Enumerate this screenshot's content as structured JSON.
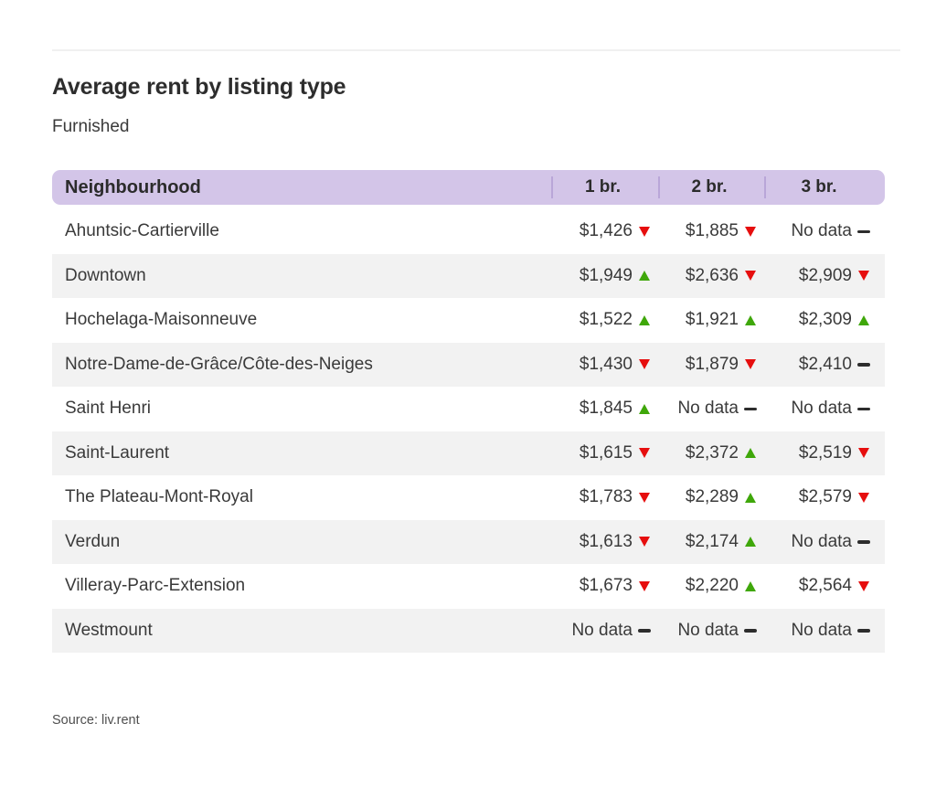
{
  "colors": {
    "header_bg": "#d3c5e8",
    "header_divider": "#b9a6d8",
    "row_alt": "#f2f2f2",
    "up": "#3fa70a",
    "down": "#e60e0e",
    "flat": "#2d2d2d",
    "text": "#3a3a3a"
  },
  "chart_data": {
    "type": "table",
    "title": "Average rent by listing type",
    "subtitle": "Furnished",
    "columns": [
      "Neighbourhood",
      "1 br.",
      "2 br.",
      "3 br."
    ],
    "no_data_label": "No data",
    "source": "Source: liv.rent",
    "rows": [
      {
        "neighbourhood": "Ahuntsic-Cartierville",
        "cells": [
          {
            "value": "$1,426",
            "trend": "down"
          },
          {
            "value": "$1,885",
            "trend": "down"
          },
          {
            "value": "No data",
            "trend": "flat"
          }
        ]
      },
      {
        "neighbourhood": "Downtown",
        "cells": [
          {
            "value": "$1,949",
            "trend": "up"
          },
          {
            "value": "$2,636",
            "trend": "down"
          },
          {
            "value": "$2,909",
            "trend": "down"
          }
        ]
      },
      {
        "neighbourhood": "Hochelaga-Maisonneuve",
        "cells": [
          {
            "value": "$1,522",
            "trend": "up"
          },
          {
            "value": "$1,921",
            "trend": "up"
          },
          {
            "value": "$2,309",
            "trend": "up"
          }
        ]
      },
      {
        "neighbourhood": "Notre-Dame-de-Grâce/Côte-des-Neiges",
        "cells": [
          {
            "value": "$1,430",
            "trend": "down"
          },
          {
            "value": "$1,879",
            "trend": "down"
          },
          {
            "value": "$2,410",
            "trend": "flat"
          }
        ]
      },
      {
        "neighbourhood": "Saint Henri",
        "cells": [
          {
            "value": "$1,845",
            "trend": "up"
          },
          {
            "value": "No data",
            "trend": "flat"
          },
          {
            "value": "No data",
            "trend": "flat"
          }
        ]
      },
      {
        "neighbourhood": "Saint-Laurent",
        "cells": [
          {
            "value": "$1,615",
            "trend": "down"
          },
          {
            "value": "$2,372",
            "trend": "up"
          },
          {
            "value": "$2,519",
            "trend": "down"
          }
        ]
      },
      {
        "neighbourhood": "The Plateau-Mont-Royal",
        "cells": [
          {
            "value": "$1,783",
            "trend": "down"
          },
          {
            "value": "$2,289",
            "trend": "up"
          },
          {
            "value": "$2,579",
            "trend": "down"
          }
        ]
      },
      {
        "neighbourhood": "Verdun",
        "cells": [
          {
            "value": "$1,613",
            "trend": "down"
          },
          {
            "value": "$2,174",
            "trend": "up"
          },
          {
            "value": "No data",
            "trend": "flat"
          }
        ]
      },
      {
        "neighbourhood": "Villeray-Parc-Extension",
        "cells": [
          {
            "value": "$1,673",
            "trend": "down"
          },
          {
            "value": "$2,220",
            "trend": "up"
          },
          {
            "value": "$2,564",
            "trend": "down"
          }
        ]
      },
      {
        "neighbourhood": "Westmount",
        "cells": [
          {
            "value": "No data",
            "trend": "flat"
          },
          {
            "value": "No data",
            "trend": "flat"
          },
          {
            "value": "No data",
            "trend": "flat"
          }
        ]
      }
    ]
  }
}
